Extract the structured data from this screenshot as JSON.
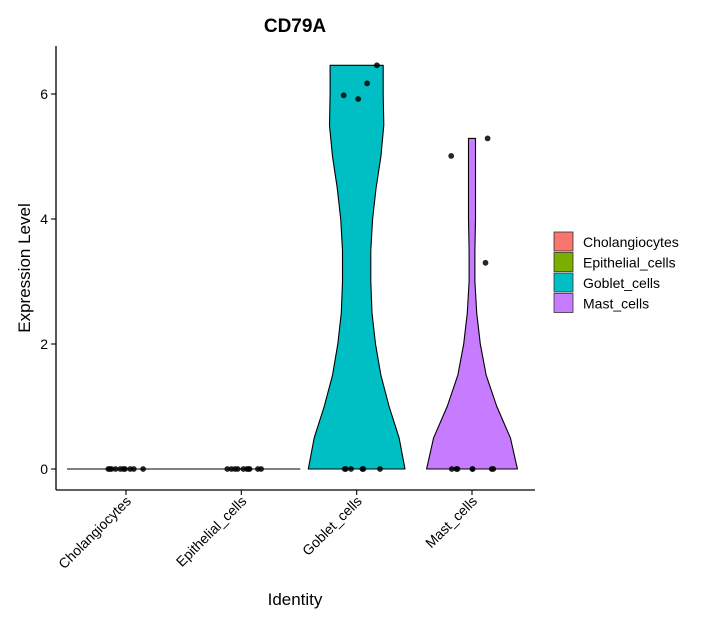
{
  "chart_data": {
    "type": "violin",
    "title": "CD79A",
    "xlabel": "Identity",
    "ylabel": "Expression Level",
    "ylim": [
      -0.35,
      6.8
    ],
    "yticks": [
      0,
      2,
      4,
      6
    ],
    "grid": false,
    "legend_position": "right",
    "categories": [
      "Cholangiocytes",
      "Epithelial_cells",
      "Goblet_cells",
      "Mast_cells"
    ],
    "series": [
      {
        "name": "Cholangiocytes",
        "color": "#F8766D",
        "max": 0,
        "points": [
          {
            "x": -0.34,
            "y": 0
          },
          {
            "x": -0.31,
            "y": 0
          },
          {
            "x": -0.28,
            "y": 0
          },
          {
            "x": -0.2,
            "y": 0
          },
          {
            "x": -0.11,
            "y": 0
          },
          {
            "x": -0.05,
            "y": 0
          },
          {
            "x": -0.02,
            "y": 0
          },
          {
            "x": 0.08,
            "y": 0
          },
          {
            "x": 0.15,
            "y": 0
          },
          {
            "x": 0.33,
            "y": 0
          }
        ]
      },
      {
        "name": "Epithelial_cells",
        "color": "#7CAE00",
        "max": 0,
        "points": [
          {
            "x": -0.27,
            "y": 0
          },
          {
            "x": -0.19,
            "y": 0
          },
          {
            "x": -0.12,
            "y": 0
          },
          {
            "x": -0.07,
            "y": 0
          },
          {
            "x": 0.04,
            "y": 0
          },
          {
            "x": 0.11,
            "y": 0
          },
          {
            "x": 0.14,
            "y": 0
          },
          {
            "x": 0.16,
            "y": 0
          },
          {
            "x": 0.32,
            "y": 0
          },
          {
            "x": 0.38,
            "y": 0
          }
        ]
      },
      {
        "name": "Goblet_cells",
        "color": "#00BFC4",
        "max": 6.46,
        "violin_profile": [
          {
            "y": 0,
            "w": 0.82
          },
          {
            "y": 0.5,
            "w": 0.72
          },
          {
            "y": 1.0,
            "w": 0.55
          },
          {
            "y": 1.5,
            "w": 0.41
          },
          {
            "y": 2.0,
            "w": 0.32
          },
          {
            "y": 2.5,
            "w": 0.26
          },
          {
            "y": 3.0,
            "w": 0.24
          },
          {
            "y": 3.5,
            "w": 0.24
          },
          {
            "y": 4.0,
            "w": 0.27
          },
          {
            "y": 4.5,
            "w": 0.33
          },
          {
            "y": 5.0,
            "w": 0.41
          },
          {
            "y": 5.5,
            "w": 0.46
          },
          {
            "y": 6.0,
            "w": 0.45
          },
          {
            "y": 6.46,
            "w": 0.45
          }
        ],
        "points": [
          {
            "x": -0.25,
            "y": 5.98
          },
          {
            "x": 0.03,
            "y": 5.92
          },
          {
            "x": 0.2,
            "y": 6.17
          },
          {
            "x": 0.39,
            "y": 6.46
          },
          {
            "x": -0.23,
            "y": 0
          },
          {
            "x": -0.21,
            "y": 0
          },
          {
            "x": -0.11,
            "y": 0
          },
          {
            "x": 0.11,
            "y": 0
          },
          {
            "x": 0.13,
            "y": 0
          },
          {
            "x": 0.45,
            "y": 0
          }
        ]
      },
      {
        "name": "Mast_cells",
        "color": "#C77CFF",
        "max": 5.29,
        "violin_profile": [
          {
            "y": 0,
            "w": 0.77
          },
          {
            "y": 0.5,
            "w": 0.65
          },
          {
            "y": 1.0,
            "w": 0.42
          },
          {
            "y": 1.5,
            "w": 0.24
          },
          {
            "y": 2.0,
            "w": 0.14
          },
          {
            "y": 2.5,
            "w": 0.08
          },
          {
            "y": 3.0,
            "w": 0.05
          },
          {
            "y": 3.5,
            "w": 0.05
          },
          {
            "y": 4.0,
            "w": 0.06
          },
          {
            "y": 4.5,
            "w": 0.06
          },
          {
            "y": 5.0,
            "w": 0.06
          },
          {
            "y": 5.29,
            "w": 0.06
          }
        ],
        "points": [
          {
            "x": -0.4,
            "y": 5.01
          },
          {
            "x": 0.3,
            "y": 5.29
          },
          {
            "x": 0.26,
            "y": 3.3
          },
          {
            "x": -0.39,
            "y": 0
          },
          {
            "x": -0.3,
            "y": 0
          },
          {
            "x": -0.28,
            "y": 0
          },
          {
            "x": 0.01,
            "y": 0
          },
          {
            "x": 0.01,
            "y": 0
          },
          {
            "x": 0.38,
            "y": 0
          },
          {
            "x": 0.41,
            "y": 0
          }
        ]
      }
    ]
  }
}
